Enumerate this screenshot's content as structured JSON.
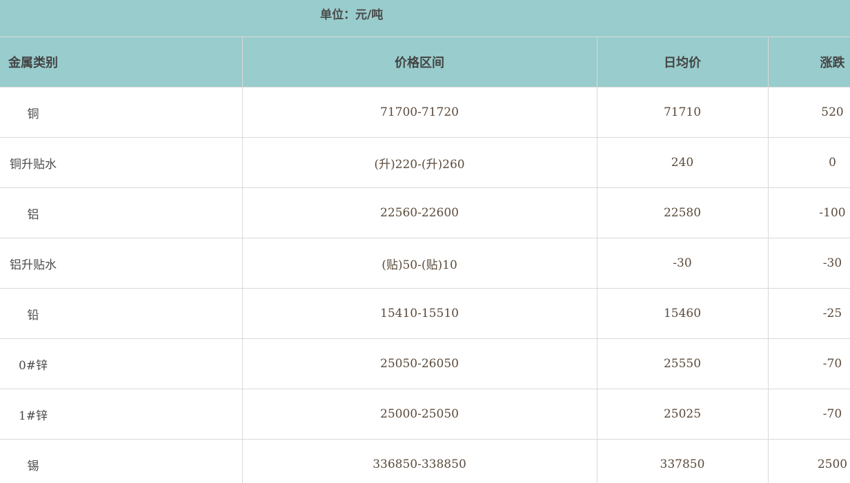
{
  "unit_label": "单位：元/吨",
  "colors": {
    "header_bg": "#99cccc",
    "border": "#d9d9d9"
  },
  "columns": [
    "金属类别",
    "价格区间",
    "日均价",
    "涨跌"
  ],
  "rows": [
    {
      "metal": "铜",
      "range": "71700-71720",
      "avg": "71710",
      "change": "520"
    },
    {
      "metal": "铜升贴水",
      "range": "(升)220-(升)260",
      "avg": "240",
      "change": "0"
    },
    {
      "metal": "铝",
      "range": "22560-22600",
      "avg": "22580",
      "change": "-100"
    },
    {
      "metal": "铝升贴水",
      "range": "(贴)50-(贴)10",
      "avg": "-30",
      "change": "-30"
    },
    {
      "metal": "铅",
      "range": "15410-15510",
      "avg": "15460",
      "change": "-25"
    },
    {
      "metal": "0#锌",
      "range": "25050-26050",
      "avg": "25550",
      "change": "-70"
    },
    {
      "metal": "1#锌",
      "range": "25000-25050",
      "avg": "25025",
      "change": "-70"
    },
    {
      "metal": "锡",
      "range": "336850-338850",
      "avg": "337850",
      "change": "2500"
    }
  ]
}
